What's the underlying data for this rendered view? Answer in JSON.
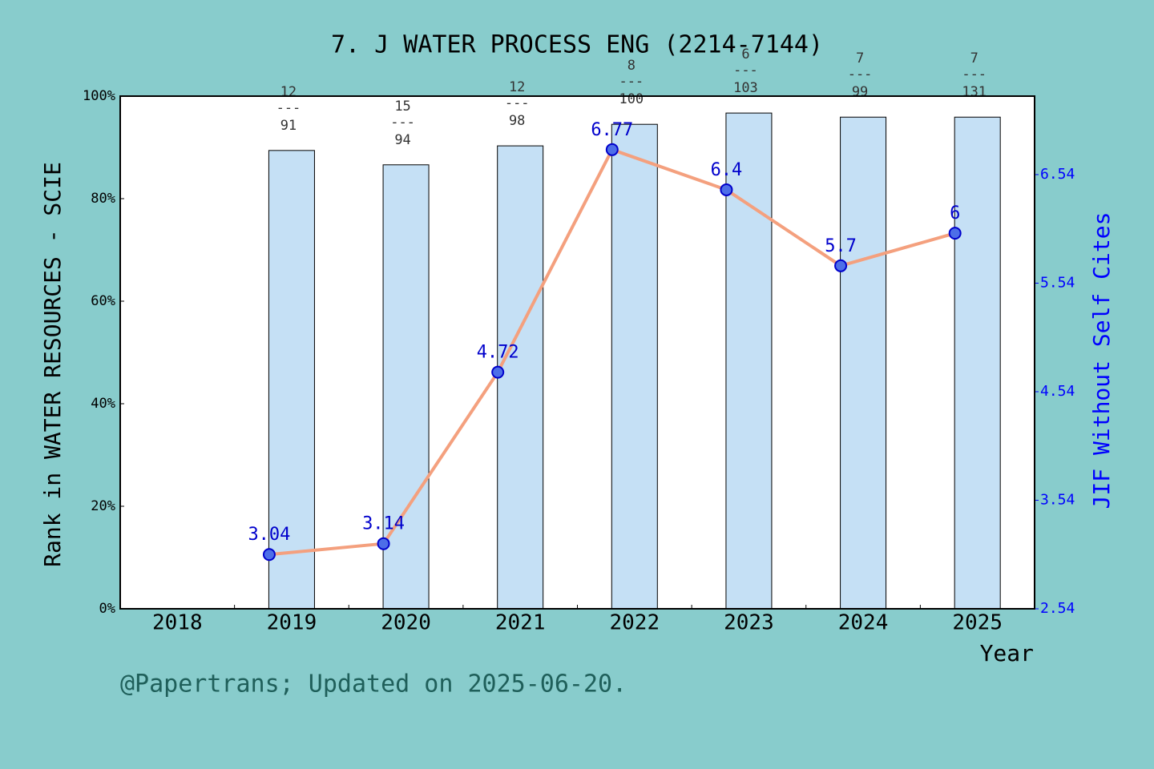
{
  "chart_data": {
    "type": "bar-line",
    "title": "7. J WATER PROCESS ENG (2214-7144)",
    "y_label": "Rank in WATER RESOURCES - SCIE",
    "y2_label": "JIF Without Self Cites",
    "x_label": "Year",
    "footer": "@Papertrans; Updated on 2025-06-20.",
    "categories": [
      "2018",
      "2019",
      "2020",
      "2021",
      "2022",
      "2023",
      "2024",
      "2025"
    ],
    "series": [
      {
        "name": "Rank percentile",
        "type": "bar",
        "color": "#c5e0f5",
        "values": [
          null,
          89.4,
          86.6,
          90.3,
          94.5,
          96.7,
          95.9,
          95.9
        ],
        "rank": [
          null,
          12,
          15,
          12,
          8,
          6,
          7,
          7
        ],
        "total": [
          null,
          91,
          94,
          98,
          100,
          103,
          99,
          131
        ]
      },
      {
        "name": "JIF Without Self Cites",
        "type": "line",
        "axis": "y2",
        "color": "#f4a07e",
        "marker_color": "#0000cc",
        "values": [
          null,
          3.04,
          3.14,
          4.72,
          6.77,
          6.4,
          5.7,
          6
        ]
      }
    ],
    "rank_separator": "---",
    "ylim": [
      0,
      100
    ],
    "yticks": [
      {
        "value": 0,
        "label": "0%"
      },
      {
        "value": 20,
        "label": "20%"
      },
      {
        "value": 40,
        "label": "40%"
      },
      {
        "value": 60,
        "label": "60%"
      },
      {
        "value": 80,
        "label": "80%"
      },
      {
        "value": 100,
        "label": "100%"
      }
    ],
    "y2lim": [
      2.54,
      7.263
    ],
    "y2ticks": [
      2.54,
      3.54,
      4.54,
      5.54,
      6.54
    ]
  }
}
